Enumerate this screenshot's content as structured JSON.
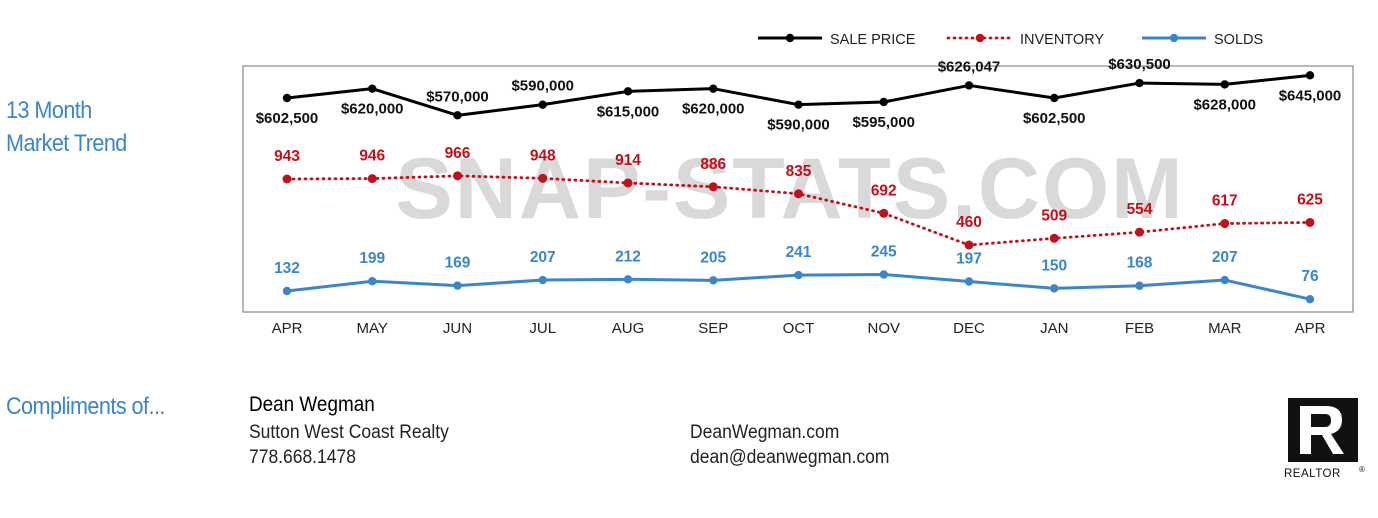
{
  "side_title": {
    "line1": "13 Month",
    "line2": "Market Trend"
  },
  "chart_data": {
    "type": "line",
    "categories": [
      "APR",
      "MAY",
      "JUN",
      "JUL",
      "AUG",
      "SEP",
      "OCT",
      "NOV",
      "DEC",
      "JAN",
      "FEB",
      "MAR",
      "APR"
    ],
    "series": [
      {
        "name": "SALE PRICE",
        "color": "#000000",
        "style": "solid",
        "values": [
          602500,
          620000,
          570000,
          590000,
          615000,
          620000,
          590000,
          595000,
          626047,
          602500,
          630500,
          628000,
          645000
        ],
        "labels": [
          "$602,500",
          "$620,000",
          "$570,000",
          "$590,000",
          "$615,000",
          "$620,000",
          "$590,000",
          "$595,000",
          "$626,047",
          "$602,500",
          "$630,500",
          "$628,000",
          "$645,000"
        ]
      },
      {
        "name": "INVENTORY",
        "color": "#c0101b",
        "style": "dotted",
        "values": [
          943,
          946,
          966,
          948,
          914,
          886,
          835,
          692,
          460,
          509,
          554,
          617,
          625
        ],
        "labels": [
          "943",
          "946",
          "966",
          "948",
          "914",
          "886",
          "835",
          "692",
          "460",
          "509",
          "554",
          "617",
          "625"
        ]
      },
      {
        "name": "SOLDS",
        "color": "#3b86c8",
        "style": "solid",
        "values": [
          132,
          199,
          169,
          207,
          212,
          205,
          241,
          245,
          197,
          150,
          168,
          207,
          76
        ],
        "labels": [
          "132",
          "199",
          "169",
          "207",
          "212",
          "205",
          "241",
          "245",
          "197",
          "150",
          "168",
          "207",
          "76"
        ]
      }
    ],
    "legend_position": "top-right",
    "grid": false,
    "watermark": "SNAP-STATS.COM"
  },
  "footer": {
    "compliments": "Compliments of...",
    "agent_name": "Dean Wegman",
    "company": "Sutton West Coast Realty",
    "phone": "778.668.1478",
    "website": "DeanWegman.com",
    "email": "dean@deanwegman.com"
  },
  "logo": {
    "text": "REALTOR",
    "mark": "®"
  }
}
